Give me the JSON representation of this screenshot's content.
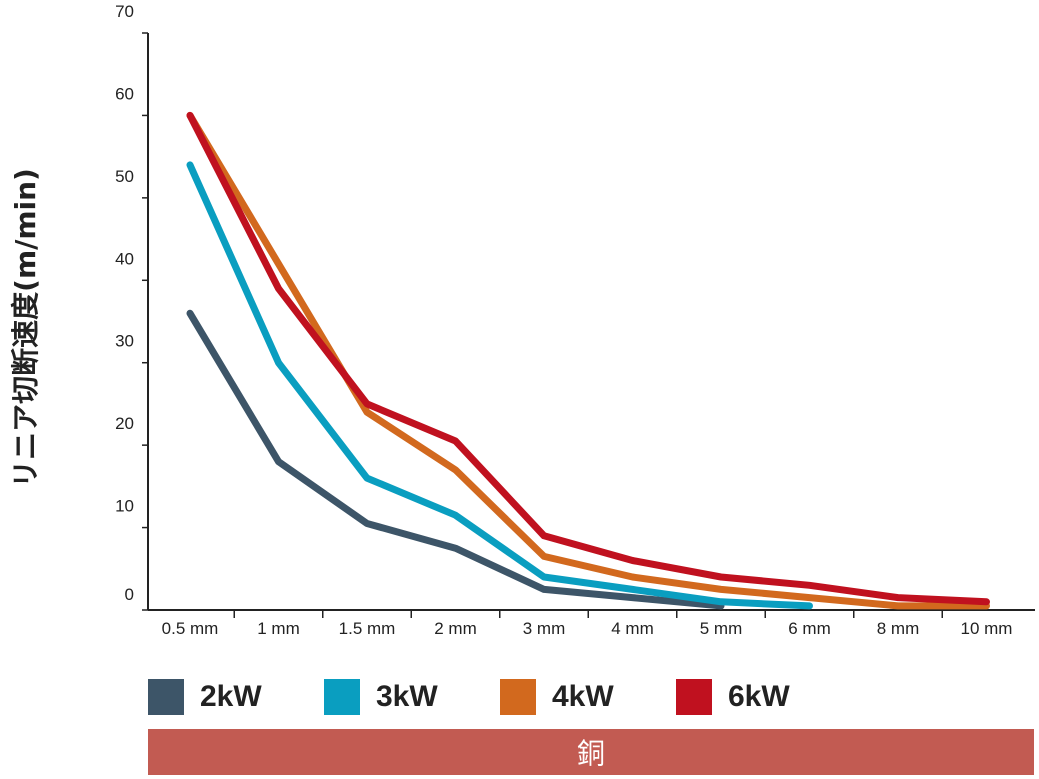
{
  "chart_data": {
    "type": "line",
    "title": "",
    "xlabel": "",
    "ylabel": "リニア切断速度(m/min)",
    "categories": [
      "0.5 mm",
      "1 mm",
      "1.5 mm",
      "2 mm",
      "3 mm",
      "4 mm",
      "5 mm",
      "6 mm",
      "8 mm",
      "10 mm"
    ],
    "y_ticks": [
      "70",
      "60",
      "50",
      "40",
      "30",
      "20",
      "10",
      "0"
    ],
    "ylim": [
      0,
      70
    ],
    "grid": false,
    "legend_position": "bottom",
    "series": [
      {
        "name": "2kW",
        "color": "#3d5568",
        "values": [
          36,
          18,
          10.5,
          7.5,
          2.5,
          1.5,
          0.5,
          null,
          null,
          null
        ]
      },
      {
        "name": "3kW",
        "color": "#0a9ec0",
        "values": [
          54,
          30,
          16,
          11.5,
          4,
          2.5,
          1,
          0.5,
          null,
          null
        ]
      },
      {
        "name": "4kW",
        "color": "#d2691e",
        "values": [
          60,
          42,
          24,
          17,
          6.5,
          4,
          2.5,
          1.5,
          0.5,
          0.5
        ]
      },
      {
        "name": "6kW",
        "color": "#c0111f",
        "values": [
          60,
          39,
          25,
          20.5,
          9,
          6,
          4,
          3,
          1.5,
          1
        ]
      }
    ]
  },
  "material_banner": "銅"
}
